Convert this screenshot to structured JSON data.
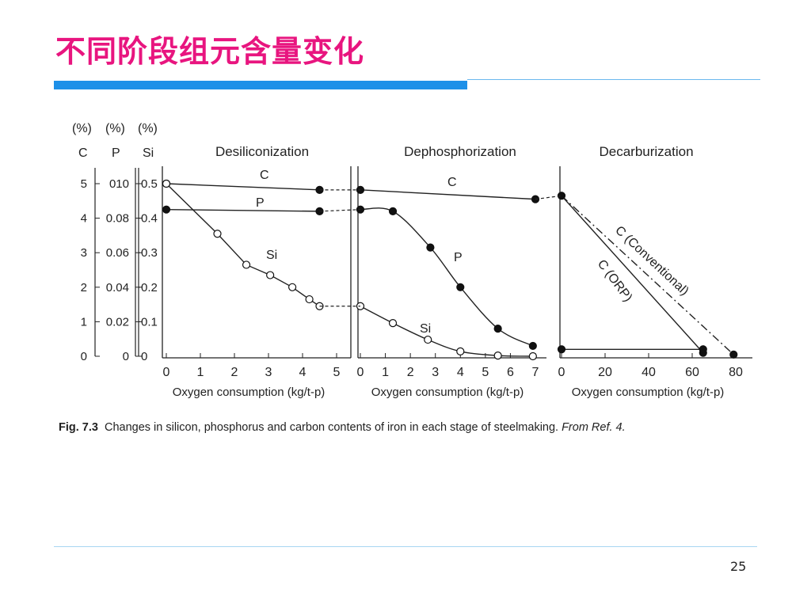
{
  "slide": {
    "title": "不同阶段组元含量变化",
    "page_number": "25",
    "colors": {
      "title": "#e8157f",
      "accent_bar": "#1e90e8",
      "rule": "#a8d6f2"
    }
  },
  "caption": {
    "label": "Fig. 7.3",
    "text": "Changes in silicon, phosphorus and carbon contents of iron in each stage of steelmaking.",
    "ref": "From Ref. 4."
  },
  "chart_data": {
    "type": "line",
    "y_axes": {
      "unit_label": "(%)",
      "names": [
        "C",
        "P",
        "Si"
      ],
      "C_ticks": [
        "5",
        "4",
        "3",
        "2",
        "1",
        "0"
      ],
      "P_ticks": [
        "010",
        "0.08",
        "0.06",
        "0.04",
        "0.02",
        "0"
      ],
      "Si_ticks": [
        "0.5",
        "0.4",
        "0.3",
        "0.2",
        "0.1",
        "0"
      ],
      "C_range": [
        0,
        5
      ],
      "P_range": [
        0,
        0.1
      ],
      "Si_range": [
        0,
        0.5
      ]
    },
    "panels": [
      {
        "title": "Desiliconization",
        "xlabel": "Oxygen consumption (kg/t-p)",
        "xlim": [
          0,
          5
        ],
        "xticks": [
          "0",
          "1",
          "2",
          "3",
          "4",
          "5"
        ],
        "series": [
          {
            "name": "C",
            "axis": "C",
            "marker": "filled",
            "points": [
              [
                0,
                5.0
              ],
              [
                4.5,
                4.82
              ]
            ]
          },
          {
            "name": "P",
            "axis": "P",
            "marker": "filled",
            "points": [
              [
                0,
                0.085
              ],
              [
                4.5,
                0.084
              ]
            ]
          },
          {
            "name": "Si",
            "axis": "Si",
            "marker": "open",
            "points": [
              [
                0,
                0.5
              ],
              [
                1.5,
                0.355
              ],
              [
                2.35,
                0.265
              ],
              [
                3.05,
                0.235
              ],
              [
                3.7,
                0.2
              ],
              [
                4.2,
                0.165
              ],
              [
                4.5,
                0.145
              ]
            ],
            "extra_open_points": []
          }
        ],
        "labels": [
          {
            "text": "C",
            "series": "C"
          },
          {
            "text": "P",
            "series": "P"
          },
          {
            "text": "Si",
            "series": "Si"
          }
        ]
      },
      {
        "title": "Dephosphorization",
        "xlabel": "Oxygen consumption (kg/t-p)",
        "xlim": [
          0,
          7
        ],
        "xticks": [
          "0",
          "1",
          "2",
          "3",
          "4",
          "5",
          "6",
          "7"
        ],
        "series": [
          {
            "name": "C",
            "axis": "C",
            "marker": "filled",
            "points": [
              [
                0,
                4.82
              ],
              [
                7,
                4.55
              ]
            ]
          },
          {
            "name": "P",
            "axis": "P",
            "marker": "filled",
            "points": [
              [
                0,
                0.085
              ],
              [
                1.3,
                0.084
              ],
              [
                2.8,
                0.063
              ],
              [
                4.0,
                0.04
              ],
              [
                5.5,
                0.016
              ],
              [
                6.9,
                0.006
              ]
            ]
          },
          {
            "name": "Si",
            "axis": "Si",
            "marker": "open",
            "points": [
              [
                0,
                0.145
              ],
              [
                1.3,
                0.096
              ],
              [
                2.7,
                0.048
              ],
              [
                4.0,
                0.014
              ],
              [
                5.5,
                0.002
              ],
              [
                6.9,
                0.0
              ]
            ]
          }
        ],
        "labels": [
          {
            "text": "C",
            "series": "C"
          },
          {
            "text": "P",
            "series": "P"
          },
          {
            "text": "Si",
            "series": "Si"
          }
        ]
      },
      {
        "title": "Decarburization",
        "xlabel": "Oxygen consumption (kg/t-p)",
        "xlim": [
          0,
          80
        ],
        "xticks": [
          "0",
          "20",
          "40",
          "60",
          "80"
        ],
        "series": [
          {
            "name": "C (ORP)",
            "axis": "C",
            "style": "solid",
            "points": [
              [
                0,
                4.65
              ],
              [
                65,
                0.1
              ]
            ],
            "end_marker": "filled"
          },
          {
            "name": "C (Conventional)",
            "axis": "C",
            "style": "dashdot",
            "points": [
              [
                0,
                4.65
              ],
              [
                79,
                0.05
              ]
            ],
            "end_marker": "filled"
          },
          {
            "name": "baseline",
            "axis": "C",
            "style": "solid",
            "points": [
              [
                0,
                0.2
              ],
              [
                65,
                0.2
              ]
            ],
            "start_marker": "filled",
            "end_marker": "filled"
          }
        ],
        "labels": [
          {
            "text": "C (Conventional)"
          },
          {
            "text": "C (ORP)"
          }
        ]
      }
    ],
    "connectors": "dashed lines join stage end points to next stage start points"
  }
}
